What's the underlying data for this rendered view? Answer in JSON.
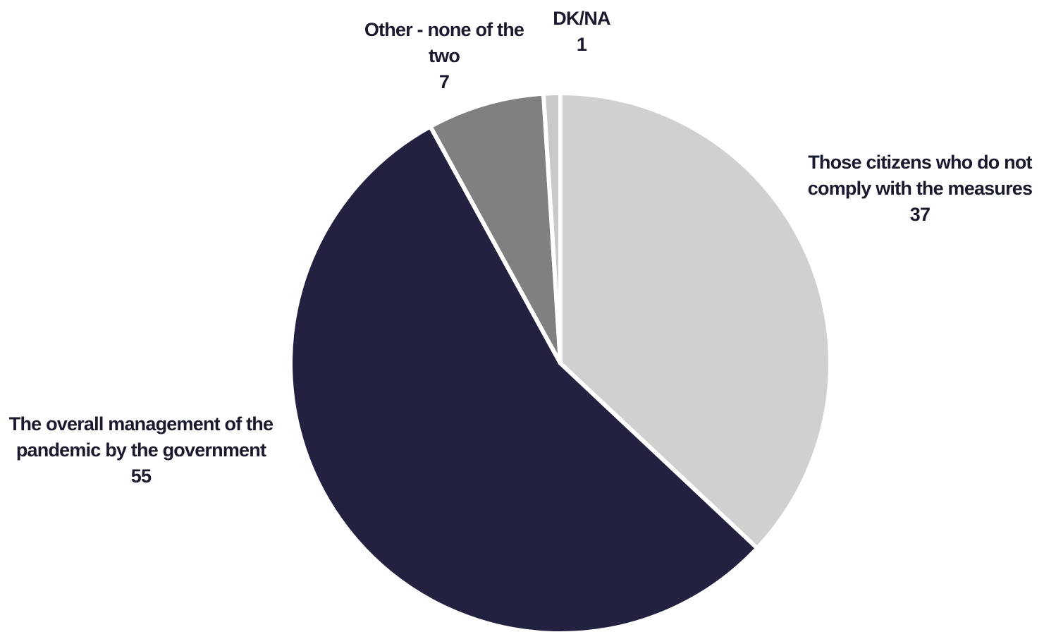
{
  "chart_data": {
    "type": "pie",
    "categories": [
      "Those citizens who do not comply with the measures",
      "The overall management of the pandemic by the government",
      "Other - none of the two",
      "DK/NA"
    ],
    "values": [
      37,
      55,
      7,
      1
    ],
    "colors": [
      "#d0d0d0",
      "#232140",
      "#808080",
      "#c9c9c9"
    ]
  }
}
